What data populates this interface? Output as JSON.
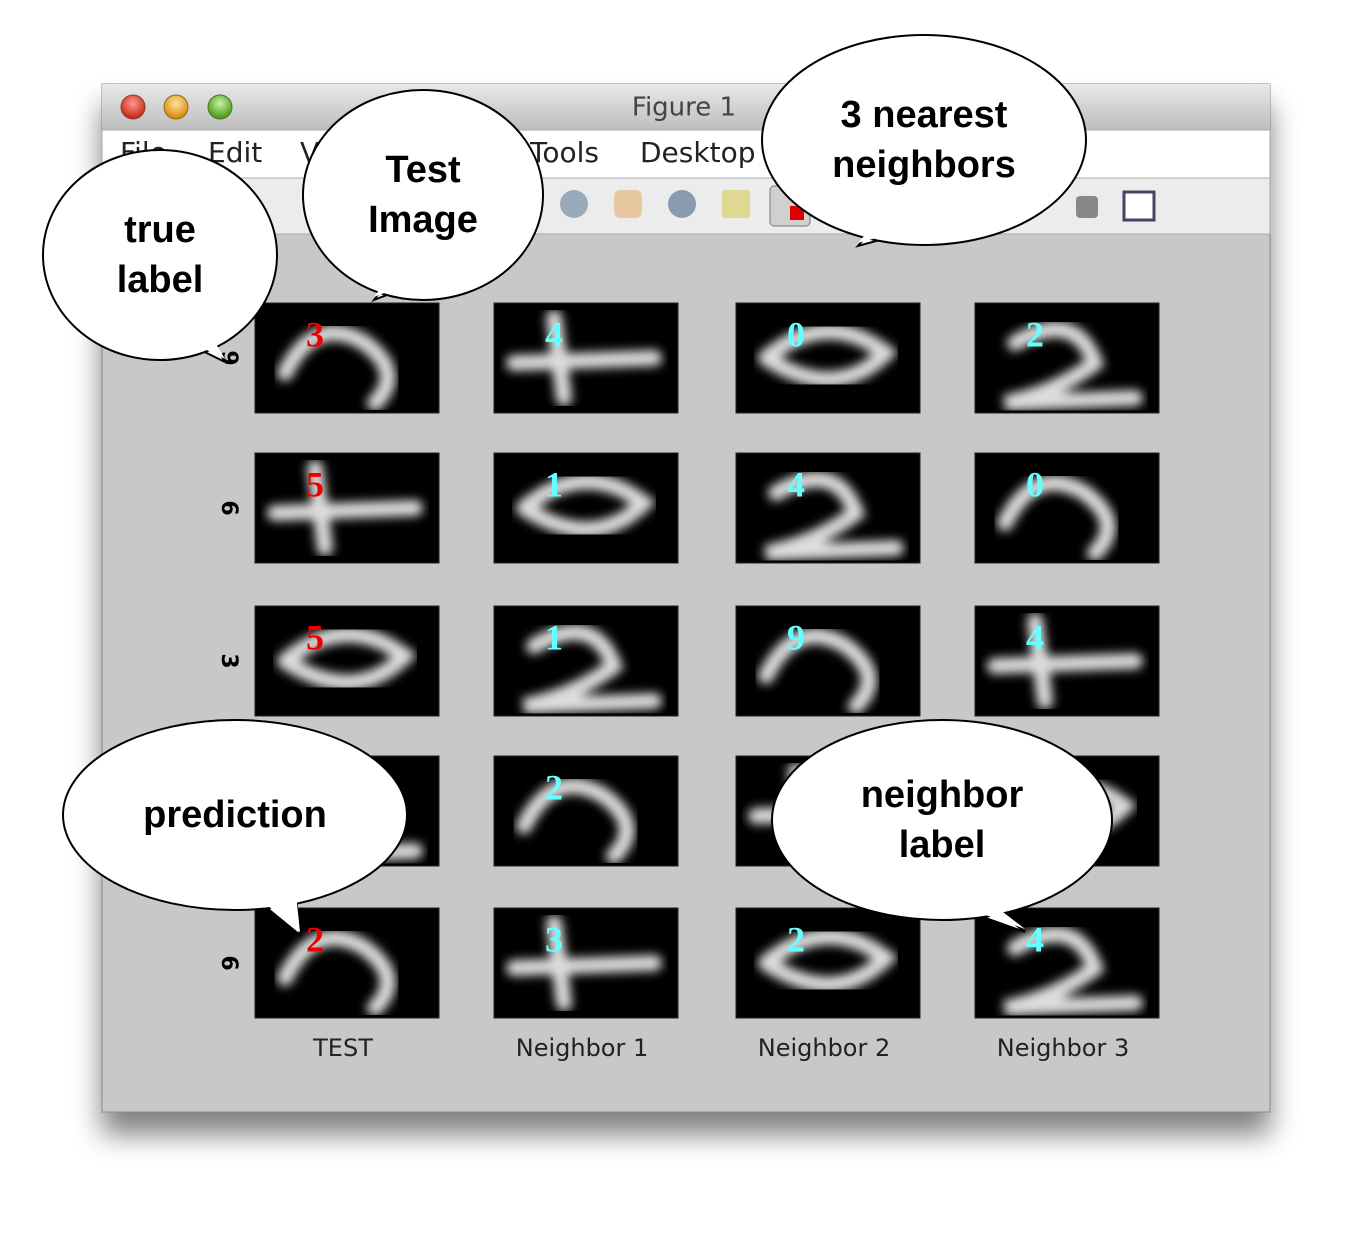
{
  "window": {
    "title": "Figure 1",
    "menu": [
      "File",
      "Edit",
      "View",
      "Tools",
      "Desktop"
    ]
  },
  "grid": {
    "columns": [
      "TEST",
      "Neighbor 1",
      "Neighbor 2",
      "Neighbor 3"
    ],
    "rows": [
      {
        "true_label": "9",
        "labels": [
          "3",
          "4",
          "0",
          "2"
        ]
      },
      {
        "true_label": "6",
        "labels": [
          "5",
          "1",
          "4",
          "0"
        ]
      },
      {
        "true_label": "3",
        "labels": [
          "5",
          "1",
          "9",
          "4"
        ]
      },
      {
        "true_label": null,
        "labels": [
          null,
          "2",
          null,
          null
        ]
      },
      {
        "true_label": "6",
        "labels": [
          "2",
          "3",
          "2",
          "4"
        ]
      }
    ]
  },
  "callouts": [
    {
      "lines": [
        "true",
        "label"
      ]
    },
    {
      "lines": [
        "Test",
        "Image"
      ]
    },
    {
      "lines": [
        "3 nearest",
        "neighbors"
      ]
    },
    {
      "lines": [
        "prediction"
      ]
    },
    {
      "lines": [
        "neighbor",
        "label"
      ]
    }
  ]
}
